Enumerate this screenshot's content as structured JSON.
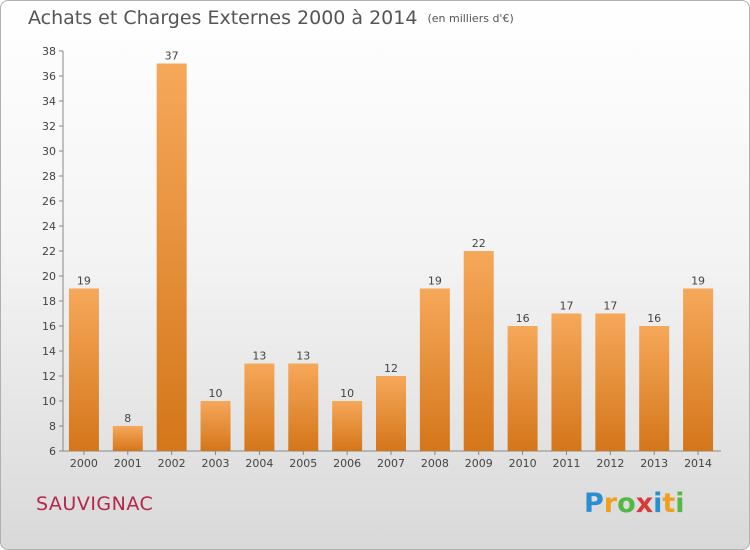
{
  "title": "Achats et Charges Externes 2000 à 2014",
  "subtitle": "(en milliers d'€)",
  "commune": "SAUVIGNAC",
  "logo": {
    "letters": [
      "P",
      "r",
      "o",
      "x",
      "i",
      "t",
      "i"
    ],
    "colors": [
      "#2a8fd0",
      "#f0a020",
      "#55b845",
      "#d83a3a",
      "#2a8fd0",
      "#f0a020",
      "#55b845"
    ]
  },
  "colors": {
    "bar_top": "#f6a85a",
    "bar_bottom": "#d4761a",
    "commune": "#b5264a"
  },
  "chart_data": {
    "type": "bar",
    "title": "Achats et Charges Externes 2000 à 2014",
    "subtitle": "(en milliers d'€)",
    "categories": [
      "2000",
      "2001",
      "2002",
      "2003",
      "2004",
      "2005",
      "2006",
      "2007",
      "2008",
      "2009",
      "2010",
      "2011",
      "2012",
      "2013",
      "2014"
    ],
    "values": [
      19,
      8,
      37,
      10,
      13,
      13,
      10,
      12,
      19,
      22,
      16,
      17,
      17,
      16,
      19
    ],
    "ylim": [
      6,
      38
    ],
    "yticks": [
      6,
      8,
      10,
      12,
      14,
      16,
      18,
      20,
      22,
      24,
      26,
      28,
      30,
      32,
      34,
      36,
      38
    ],
    "grid": false,
    "xlabel": "",
    "ylabel": ""
  }
}
